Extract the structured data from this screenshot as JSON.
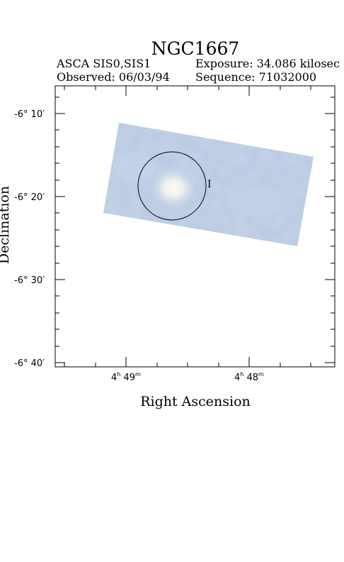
{
  "header": {
    "title": "NGC1667",
    "instrument": "ASCA SIS0,SIS1",
    "observed": "Observed: 06/03/94",
    "exposure": "Exposure: 34.086 kilosec",
    "sequence": "Sequence: 71032000"
  },
  "axes": {
    "xlabel": "Right Ascension",
    "ylabel": "Declination",
    "x_ticks": [
      {
        "h": "4",
        "m": "49"
      },
      {
        "h": "4",
        "m": "48"
      }
    ],
    "y_ticks": [
      "-6° 10′",
      "-6° 20′",
      "-6° 30′",
      "-6° 40′"
    ]
  },
  "image": {
    "description_color": "#b9c8e2",
    "source_circle": true,
    "marker_label": "I"
  },
  "colors": {
    "field": "#b9c8e2",
    "hotspot": "#fbf6df",
    "frame": "#000000"
  }
}
